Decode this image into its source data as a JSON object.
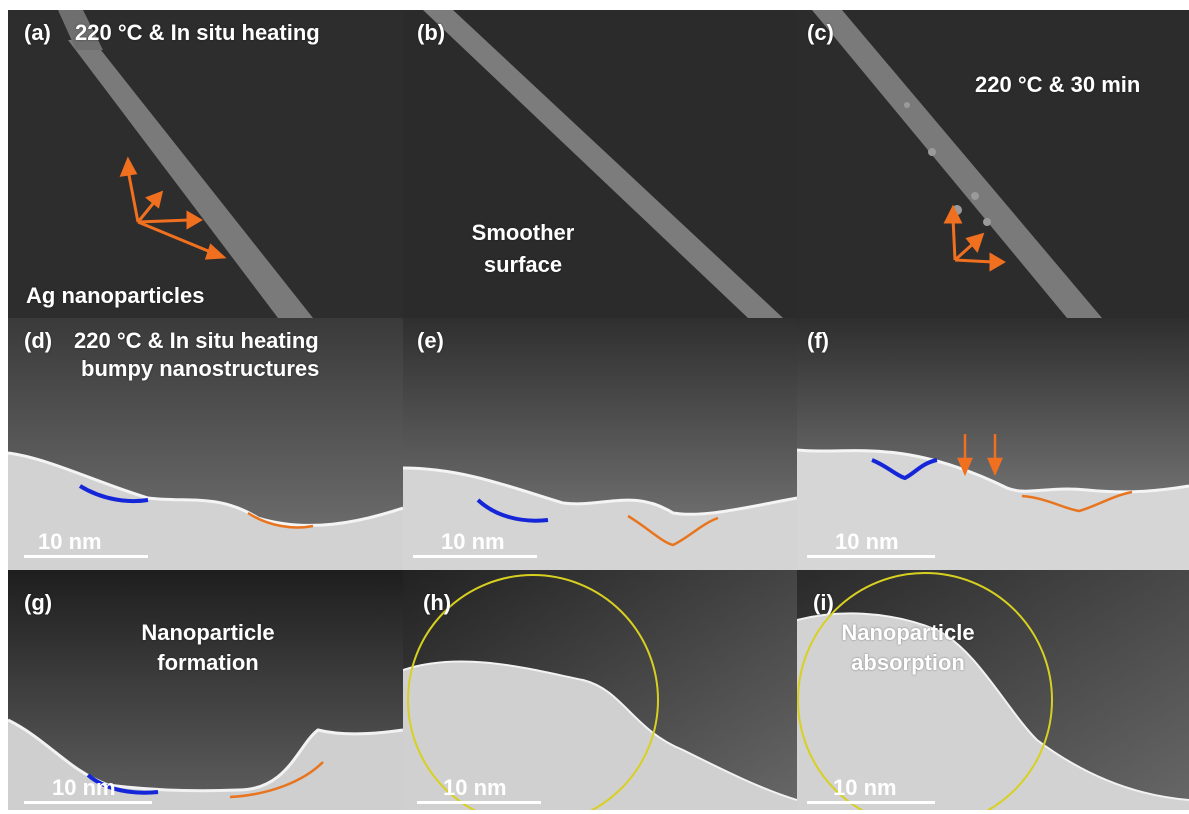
{
  "figure": {
    "panels": [
      {
        "id": "a",
        "label": "(a)",
        "caption_lines": [
          "220 °C & In situ heating"
        ],
        "note_lines": [
          "Ag nanoparticles"
        ],
        "scale_bar": ""
      },
      {
        "id": "b",
        "label": "(b)",
        "caption_lines": [],
        "note_lines": [
          "Smoother",
          "surface"
        ],
        "scale_bar": ""
      },
      {
        "id": "c",
        "label": "(c)",
        "caption_lines": [
          "220 °C & 30 min"
        ],
        "note_lines": [],
        "scale_bar": ""
      },
      {
        "id": "d",
        "label": "(d)",
        "caption_lines": [
          "220 °C & In situ heating",
          "bumpy nanostructures"
        ],
        "note_lines": [],
        "scale_bar": "10 nm"
      },
      {
        "id": "e",
        "label": "(e)",
        "caption_lines": [],
        "note_lines": [],
        "scale_bar": "10 nm"
      },
      {
        "id": "f",
        "label": "(f)",
        "caption_lines": [],
        "note_lines": [],
        "scale_bar": "10 nm"
      },
      {
        "id": "g",
        "label": "(g)",
        "caption_lines": [
          "Nanoparticle",
          "formation"
        ],
        "note_lines": [],
        "scale_bar": "10 nm"
      },
      {
        "id": "h",
        "label": "(h)",
        "caption_lines": [],
        "note_lines": [],
        "scale_bar": "10 nm"
      },
      {
        "id": "i",
        "label": "(i)",
        "caption_lines": [
          "Nanoparticle",
          "absorption"
        ],
        "note_lines": [],
        "scale_bar": "10 nm"
      }
    ],
    "colors": {
      "arrow": "#f07020",
      "blue_curve": "#1426d8",
      "orange_curve": "#e8741e",
      "circle": "#d8d020",
      "text": "#ffffff"
    }
  }
}
